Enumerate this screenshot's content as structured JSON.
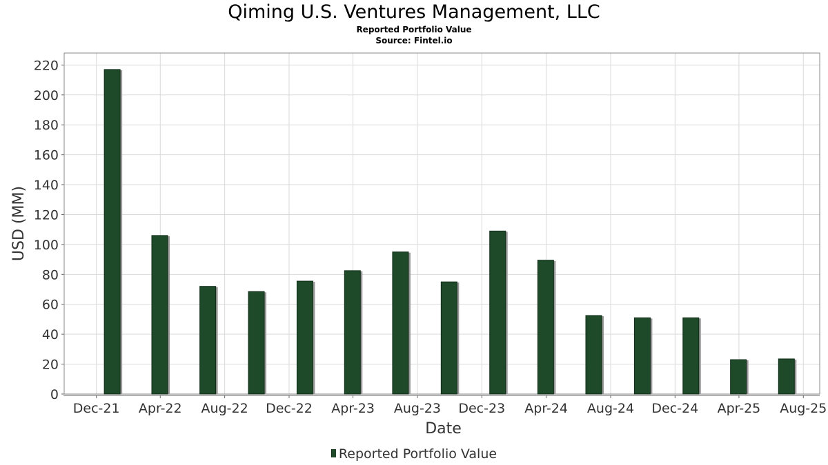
{
  "header": {
    "title": "Qiming U.S. Ventures Management, LLC",
    "subtitle1": "Reported Portfolio Value",
    "subtitle2": "Source: Fintel.io"
  },
  "legend": {
    "label": "Reported Portfolio Value"
  },
  "colors": {
    "bar": "#1f4a2a",
    "bar_shadow": "#9a9a9a",
    "grid": "#d9d9d9",
    "frame": "#888888"
  },
  "chart_data": {
    "type": "bar",
    "title": "Qiming U.S. Ventures Management, LLC",
    "xlabel": "Date",
    "ylabel": "USD (MM)",
    "ylim": [
      0,
      228
    ],
    "yticks": [
      0,
      20,
      40,
      60,
      80,
      100,
      120,
      140,
      160,
      180,
      200,
      220
    ],
    "xlim": [
      "2021-10-01",
      "2025-09-01"
    ],
    "xticks": [
      {
        "label": "Dec-21",
        "date": "2021-12-01"
      },
      {
        "label": "Apr-22",
        "date": "2022-04-01"
      },
      {
        "label": "Aug-22",
        "date": "2022-08-01"
      },
      {
        "label": "Dec-22",
        "date": "2022-12-01"
      },
      {
        "label": "Apr-23",
        "date": "2023-04-01"
      },
      {
        "label": "Aug-23",
        "date": "2023-08-01"
      },
      {
        "label": "Dec-23",
        "date": "2023-12-01"
      },
      {
        "label": "Apr-24",
        "date": "2024-04-01"
      },
      {
        "label": "Aug-24",
        "date": "2024-08-01"
      },
      {
        "label": "Dec-24",
        "date": "2024-12-01"
      },
      {
        "label": "Apr-25",
        "date": "2025-04-01"
      },
      {
        "label": "Aug-25",
        "date": "2025-08-01"
      }
    ],
    "grid": true,
    "legend_position": "bottom",
    "series": [
      {
        "name": "Reported Portfolio Value",
        "points": [
          {
            "date": "2021-12-31",
            "value": 217
          },
          {
            "date": "2022-03-31",
            "value": 106
          },
          {
            "date": "2022-06-30",
            "value": 72
          },
          {
            "date": "2022-09-30",
            "value": 68.5
          },
          {
            "date": "2022-12-31",
            "value": 75.5
          },
          {
            "date": "2023-03-31",
            "value": 82.5
          },
          {
            "date": "2023-06-30",
            "value": 95
          },
          {
            "date": "2023-09-30",
            "value": 75
          },
          {
            "date": "2023-12-31",
            "value": 109
          },
          {
            "date": "2024-03-31",
            "value": 89.5
          },
          {
            "date": "2024-06-30",
            "value": 52.5
          },
          {
            "date": "2024-09-30",
            "value": 51
          },
          {
            "date": "2024-12-31",
            "value": 51
          },
          {
            "date": "2025-03-31",
            "value": 23
          },
          {
            "date": "2025-06-30",
            "value": 23.5
          }
        ]
      }
    ]
  }
}
